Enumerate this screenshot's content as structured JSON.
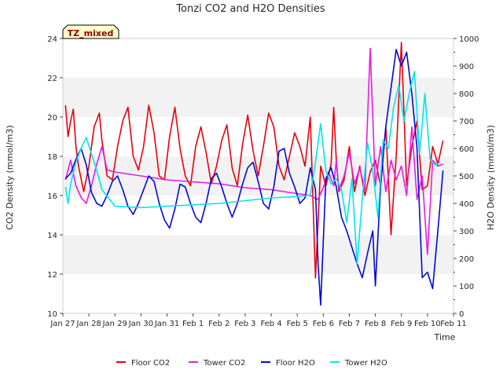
{
  "chart_data": {
    "type": "line",
    "title": "Tonzi CO2 and H2O Densities",
    "xlabel": "Time",
    "ylabel": "CO2 Density (mmol/m3)",
    "y2label": "H2O Density (mmol/m3)",
    "annotation": "TZ_mixed",
    "xlim": [
      0,
      15
    ],
    "ylim": [
      10,
      24
    ],
    "y2lim": [
      0,
      1000
    ],
    "x_tick_labels": [
      "Jan 27",
      "Jan 28",
      "Jan 29",
      "Jan 30",
      "Jan 31",
      "Feb 1",
      "Feb 2",
      "Feb 3",
      "Feb 4",
      "Feb 5",
      "Feb 6",
      "Feb 7",
      "Feb 8",
      "Feb 9",
      "Feb 10",
      "Feb 11"
    ],
    "y_ticks": [
      10,
      12,
      14,
      16,
      18,
      20,
      22,
      24
    ],
    "y2_ticks": [
      0,
      100,
      200,
      300,
      400,
      500,
      600,
      700,
      800,
      900,
      1000
    ],
    "grid": "horizontal bands",
    "legend_position": "bottom",
    "series": [
      {
        "name": "Floor CO2",
        "axis": "left",
        "color": "#e8000b",
        "x": [
          0.1,
          0.2,
          0.3,
          0.4,
          0.5,
          0.6,
          0.8,
          1.0,
          1.2,
          1.4,
          1.5,
          1.7,
          1.9,
          2.1,
          2.3,
          2.5,
          2.7,
          2.9,
          3.1,
          3.3,
          3.5,
          3.7,
          3.9,
          4.1,
          4.3,
          4.5,
          4.7,
          4.9,
          5.1,
          5.3,
          5.5,
          5.7,
          5.9,
          6.1,
          6.3,
          6.5,
          6.7,
          6.9,
          7.1,
          7.3,
          7.5,
          7.7,
          7.9,
          8.1,
          8.3,
          8.5,
          8.7,
          8.9,
          9.1,
          9.3,
          9.5,
          9.7,
          9.9,
          10.1,
          10.3,
          10.4,
          10.5,
          10.6,
          10.8,
          11.0,
          11.2,
          11.4,
          11.6,
          11.8,
          12.0,
          12.2,
          12.4,
          12.6,
          12.8,
          13.0,
          13.2,
          13.4,
          13.6,
          13.8,
          14.0,
          14.2,
          14.4,
          14.6
        ],
        "y": [
          20.6,
          19.0,
          19.8,
          20.4,
          18.5,
          17.5,
          16.2,
          17.5,
          19.5,
          20.2,
          18.8,
          17.0,
          16.8,
          18.5,
          19.8,
          20.5,
          18.0,
          17.3,
          18.5,
          20.6,
          19.2,
          17.0,
          16.8,
          19.0,
          20.5,
          18.4,
          17.0,
          16.5,
          18.5,
          19.5,
          18.2,
          16.6,
          17.5,
          18.8,
          19.6,
          17.4,
          16.5,
          18.6,
          20.1,
          18.3,
          17.0,
          18.5,
          20.2,
          19.5,
          17.5,
          16.8,
          18.0,
          19.2,
          18.5,
          17.5,
          20.0,
          11.8,
          17.5,
          16.5,
          17.6,
          20.5,
          17.8,
          16.2,
          16.8,
          18.5,
          16.2,
          17.5,
          16.0,
          17.2,
          17.8,
          16.5,
          19.5,
          14.0,
          18.0,
          23.8,
          16.5,
          18.5,
          19.8,
          16.3,
          16.5,
          18.5,
          17.6,
          18.8
        ]
      },
      {
        "name": "Tower CO2",
        "axis": "left",
        "color": "#e71ae5",
        "x": [
          0.1,
          0.3,
          0.5,
          0.7,
          0.9,
          1.1,
          1.3,
          1.5,
          1.7,
          2.0,
          3.0,
          4.0,
          5.0,
          6.0,
          7.0,
          8.0,
          9.0,
          9.5,
          9.8,
          10.0,
          10.2,
          10.4,
          10.5,
          10.6,
          10.8,
          11.0,
          11.2,
          11.4,
          11.6,
          11.8,
          12.0,
          12.2,
          12.4,
          12.6,
          12.8,
          13.0,
          13.2,
          13.4,
          13.6,
          13.8,
          14.0,
          14.2,
          14.4,
          14.6
        ],
        "y": [
          16.8,
          17.8,
          16.5,
          15.9,
          15.6,
          16.5,
          17.6,
          18.5,
          17.3,
          17.2,
          17.0,
          16.8,
          16.7,
          16.6,
          16.4,
          16.3,
          16.1,
          16.0,
          15.8,
          16.4,
          17.2,
          16.5,
          17.8,
          16.3,
          17.0,
          18.2,
          16.6,
          17.4,
          16.3,
          23.5,
          16.5,
          18.5,
          16.2,
          17.8,
          16.8,
          17.5,
          16.0,
          19.5,
          15.8,
          17.0,
          13.0,
          17.8,
          17.5,
          17.6
        ]
      },
      {
        "name": "Floor H2O",
        "axis": "right",
        "color": "#0008d7",
        "x": [
          0.1,
          0.3,
          0.5,
          0.7,
          0.9,
          1.1,
          1.3,
          1.5,
          1.7,
          1.9,
          2.1,
          2.3,
          2.5,
          2.7,
          2.9,
          3.1,
          3.3,
          3.5,
          3.7,
          3.9,
          4.1,
          4.3,
          4.5,
          4.7,
          4.9,
          5.1,
          5.3,
          5.5,
          5.7,
          5.9,
          6.1,
          6.3,
          6.5,
          6.7,
          6.9,
          7.1,
          7.3,
          7.5,
          7.7,
          7.9,
          8.1,
          8.3,
          8.5,
          8.7,
          8.9,
          9.1,
          9.3,
          9.5,
          9.7,
          9.8,
          9.9,
          10.1,
          10.3,
          10.5,
          10.7,
          10.9,
          11.1,
          11.3,
          11.5,
          11.7,
          11.9,
          12.0,
          12.2,
          12.4,
          12.6,
          12.8,
          13.0,
          13.2,
          13.4,
          13.6,
          13.8,
          14.0,
          14.2,
          14.4,
          14.6
        ],
        "y": [
          490,
          510,
          560,
          600,
          540,
          440,
          400,
          390,
          430,
          480,
          500,
          450,
          390,
          360,
          400,
          450,
          500,
          480,
          400,
          340,
          310,
          380,
          470,
          460,
          400,
          350,
          330,
          400,
          490,
          510,
          460,
          400,
          350,
          400,
          470,
          530,
          550,
          480,
          400,
          380,
          460,
          590,
          600,
          510,
          460,
          400,
          420,
          530,
          450,
          180,
          30,
          490,
          530,
          460,
          350,
          300,
          240,
          180,
          130,
          220,
          300,
          100,
          460,
          680,
          820,
          960,
          900,
          950,
          800,
          600,
          130,
          150,
          90,
          300,
          520
        ]
      },
      {
        "name": "Tower H2O",
        "axis": "right",
        "color": "#00e5ee",
        "x": [
          0.1,
          0.2,
          0.3,
          0.5,
          0.7,
          0.9,
          1.1,
          1.3,
          1.5,
          2.0,
          3.0,
          4.0,
          5.0,
          6.0,
          7.0,
          8.0,
          9.0,
          9.5,
          9.7,
          9.9,
          10.1,
          10.3,
          10.5,
          10.7,
          10.9,
          11.1,
          11.3,
          11.5,
          11.7,
          11.9,
          12.1,
          12.3,
          12.5,
          12.7,
          12.9,
          13.1,
          13.3,
          13.5,
          13.7,
          13.9,
          14.1,
          14.3,
          14.5
        ],
        "y": [
          460,
          400,
          470,
          550,
          600,
          640,
          580,
          520,
          450,
          390,
          385,
          390,
          395,
          400,
          410,
          420,
          425,
          430,
          550,
          690,
          520,
          470,
          490,
          450,
          330,
          490,
          180,
          420,
          620,
          520,
          350,
          630,
          600,
          750,
          830,
          700,
          800,
          880,
          580,
          800,
          560,
          540,
          550
        ]
      }
    ]
  }
}
